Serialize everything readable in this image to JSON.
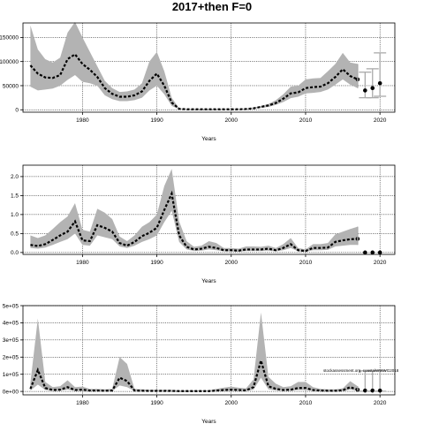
{
  "title": "2017+then F=0",
  "annotation": "stockassessment.org, coastalWWWG2018",
  "chart_data": [
    {
      "type": "line",
      "xlabel": "Years",
      "ylabel": "",
      "xlim": [
        1972,
        2022
      ],
      "ylim": [
        -5000,
        180000
      ],
      "xticks": [
        1980,
        1990,
        2000,
        2010,
        2020
      ],
      "yticks": [
        0,
        50000,
        100000,
        150000
      ],
      "ytick_labels": [
        "0",
        "50000",
        "100000",
        "150000"
      ],
      "grid": true,
      "x": [
        1973,
        1974,
        1975,
        1976,
        1977,
        1978,
        1979,
        1980,
        1981,
        1982,
        1983,
        1984,
        1985,
        1986,
        1987,
        1988,
        1989,
        1990,
        1991,
        1992,
        1993,
        1994,
        1995,
        1996,
        1997,
        1998,
        1999,
        2000,
        2001,
        2002,
        2003,
        2004,
        2005,
        2006,
        2007,
        2008,
        2009,
        2010,
        2011,
        2012,
        2013,
        2014,
        2015,
        2016,
        2017
      ],
      "series": [
        {
          "estimate": [
            92000,
            75000,
            67000,
            66000,
            72000,
            105000,
            115000,
            95000,
            83000,
            68000,
            45000,
            33000,
            27000,
            27000,
            30000,
            38000,
            60000,
            75000,
            50000,
            15000,
            2000,
            1000,
            1000,
            1000,
            1000,
            1000,
            1000,
            1000,
            1000,
            1500,
            3000,
            6000,
            9000,
            14000,
            23000,
            34000,
            36000,
            45000,
            47000,
            48000,
            55000,
            68000,
            84000,
            70000,
            63000
          ],
          "lower": [
            48000,
            40000,
            42000,
            44000,
            50000,
            62000,
            72000,
            58000,
            55000,
            50000,
            30000,
            22000,
            18000,
            18000,
            20000,
            25000,
            40000,
            50000,
            32000,
            8000,
            1000,
            500,
            500,
            500,
            500,
            500,
            500,
            500,
            500,
            1000,
            2000,
            4000,
            6000,
            10000,
            16000,
            24000,
            27000,
            34000,
            35000,
            37000,
            42000,
            52000,
            63000,
            52000,
            45000
          ],
          "upper": [
            175000,
            125000,
            105000,
            98000,
            108000,
            160000,
            182000,
            150000,
            120000,
            90000,
            60000,
            45000,
            37000,
            38000,
            42000,
            55000,
            100000,
            120000,
            80000,
            25000,
            3000,
            1500,
            1500,
            1500,
            1500,
            1500,
            1500,
            1500,
            1500,
            2500,
            4500,
            8000,
            12000,
            20000,
            32000,
            48000,
            50000,
            63000,
            65000,
            66000,
            80000,
            95000,
            118000,
            98000,
            95000
          ]
        }
      ],
      "forecast": {
        "x": [
          2018,
          2019,
          2020
        ],
        "estimate": [
          40000,
          45000,
          55000
        ],
        "lower": [
          25000,
          25000,
          28000
        ],
        "upper": [
          78000,
          85000,
          118000
        ]
      }
    },
    {
      "type": "line",
      "xlabel": "Years",
      "ylabel": "",
      "xlim": [
        1972,
        2022
      ],
      "ylim": [
        -0.05,
        2.3
      ],
      "xticks": [
        1980,
        1990,
        2000,
        2010,
        2020
      ],
      "yticks": [
        0,
        0.5,
        1,
        1.5,
        2
      ],
      "ytick_labels": [
        "0.0",
        "0.5",
        "1.0",
        "1.5",
        "2.0"
      ],
      "grid": true,
      "x": [
        1973,
        1974,
        1975,
        1976,
        1977,
        1978,
        1979,
        1980,
        1981,
        1982,
        1983,
        1984,
        1985,
        1986,
        1987,
        1988,
        1989,
        1990,
        1991,
        1992,
        1993,
        1994,
        1995,
        1996,
        1997,
        1998,
        1999,
        2000,
        2001,
        2002,
        2003,
        2004,
        2005,
        2006,
        2007,
        2008,
        2009,
        2010,
        2011,
        2012,
        2013,
        2014,
        2015,
        2016,
        2017
      ],
      "series": [
        {
          "estimate": [
            0.2,
            0.17,
            0.22,
            0.33,
            0.45,
            0.55,
            0.82,
            0.32,
            0.3,
            0.72,
            0.65,
            0.55,
            0.25,
            0.18,
            0.28,
            0.43,
            0.52,
            0.65,
            1.12,
            1.55,
            0.45,
            0.15,
            0.08,
            0.1,
            0.15,
            0.12,
            0.06,
            0.06,
            0.05,
            0.08,
            0.08,
            0.08,
            0.1,
            0.06,
            0.12,
            0.22,
            0.06,
            0.04,
            0.12,
            0.12,
            0.13,
            0.28,
            0.32,
            0.35,
            0.36
          ],
          "lower": [
            0.12,
            0.1,
            0.13,
            0.2,
            0.28,
            0.35,
            0.5,
            0.2,
            0.18,
            0.45,
            0.4,
            0.35,
            0.16,
            0.12,
            0.18,
            0.28,
            0.35,
            0.45,
            0.8,
            1.1,
            0.28,
            0.08,
            0.04,
            0.05,
            0.08,
            0.06,
            0.03,
            0.03,
            0.02,
            0.04,
            0.04,
            0.04,
            0.05,
            0.03,
            0.06,
            0.12,
            0.03,
            0.02,
            0.06,
            0.06,
            0.07,
            0.16,
            0.18,
            0.2,
            0.2
          ],
          "upper": [
            0.45,
            0.38,
            0.45,
            0.62,
            0.8,
            0.95,
            1.3,
            0.6,
            0.55,
            1.15,
            1.05,
            0.88,
            0.42,
            0.3,
            0.45,
            0.68,
            0.8,
            1.0,
            1.75,
            2.2,
            0.82,
            0.3,
            0.15,
            0.18,
            0.3,
            0.25,
            0.12,
            0.12,
            0.1,
            0.16,
            0.16,
            0.15,
            0.18,
            0.12,
            0.22,
            0.38,
            0.12,
            0.08,
            0.22,
            0.22,
            0.25,
            0.48,
            0.55,
            0.62,
            0.68
          ]
        }
      ],
      "forecast": {
        "x": [
          2018,
          2019,
          2020
        ],
        "estimate": [
          0,
          0,
          0
        ],
        "lower": [
          0,
          0,
          0
        ],
        "upper": [
          0,
          0,
          0
        ]
      }
    },
    {
      "type": "line",
      "xlabel": "Years",
      "ylabel": "",
      "xlim": [
        1972,
        2022
      ],
      "ylim": [
        -20000,
        500000
      ],
      "xticks": [
        1980,
        1990,
        2000,
        2010,
        2020
      ],
      "yticks": [
        0,
        100000,
        200000,
        300000,
        400000,
        500000
      ],
      "ytick_labels": [
        "0e+00",
        "1e+05",
        "2e+05",
        "3e+05",
        "4e+05",
        "5e+05"
      ],
      "grid": true,
      "x": [
        1973,
        1974,
        1975,
        1976,
        1977,
        1978,
        1979,
        1980,
        1981,
        1982,
        1983,
        1984,
        1985,
        1986,
        1987,
        1988,
        1989,
        1990,
        1991,
        1992,
        1993,
        1994,
        1995,
        1996,
        1997,
        1998,
        1999,
        2000,
        2001,
        2002,
        2003,
        2004,
        2005,
        2006,
        2007,
        2008,
        2009,
        2010,
        2011,
        2012,
        2013,
        2014,
        2015,
        2016,
        2017
      ],
      "series": [
        {
          "estimate": [
            15000,
            125000,
            20000,
            8000,
            10000,
            25000,
            8000,
            10000,
            5000,
            5000,
            4000,
            5000,
            80000,
            60000,
            5000,
            4000,
            3000,
            3000,
            3000,
            3000,
            2000,
            2000,
            2000,
            2000,
            2000,
            5000,
            8000,
            10000,
            8000,
            6000,
            25000,
            180000,
            30000,
            15000,
            8000,
            10000,
            20000,
            20000,
            8000,
            5000,
            4000,
            4000,
            6000,
            25000,
            10000
          ],
          "lower": [
            5000,
            40000,
            8000,
            3000,
            4000,
            10000,
            3000,
            4000,
            2000,
            2000,
            1500,
            2000,
            35000,
            25000,
            2000,
            1500,
            1000,
            1000,
            1000,
            1000,
            800,
            800,
            800,
            800,
            800,
            2000,
            3000,
            4000,
            3000,
            2500,
            10000,
            80000,
            12000,
            6000,
            3000,
            4000,
            8000,
            8000,
            3000,
            2000,
            1500,
            1500,
            2500,
            10000,
            4000
          ],
          "upper": [
            50000,
            425000,
            55000,
            25000,
            30000,
            65000,
            25000,
            28000,
            15000,
            15000,
            12000,
            15000,
            200000,
            160000,
            15000,
            12000,
            9000,
            9000,
            9000,
            9000,
            6000,
            6000,
            6000,
            6000,
            6000,
            15000,
            22000,
            28000,
            22000,
            18000,
            70000,
            460000,
            85000,
            45000,
            25000,
            30000,
            55000,
            55000,
            25000,
            15000,
            12000,
            12000,
            18000,
            60000,
            30000
          ]
        }
      ],
      "forecast": {
        "x": [
          2018,
          2019,
          2020
        ],
        "estimate": [
          5000,
          5000,
          5000
        ],
        "lower": [
          1000,
          1000,
          1000
        ],
        "upper": [
          120000,
          120000,
          120000
        ]
      }
    }
  ]
}
